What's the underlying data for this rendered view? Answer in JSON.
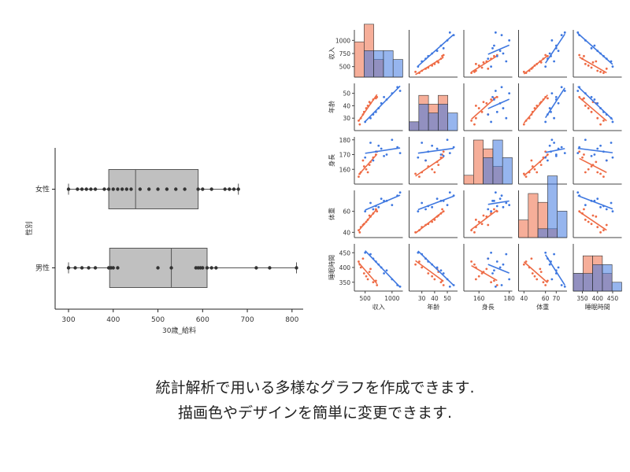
{
  "captions": {
    "line1": "統計解析で用いる多様なグラフを作成できます.",
    "line2": "描画色やデザインを簡単に変更できます."
  },
  "colors": {
    "female": "#ee6b45",
    "male": "#3f78e0",
    "box_fill": "#c0c0c0",
    "box_edge": "#555555",
    "point": "#333333"
  },
  "chart_data": [
    {
      "type": "box",
      "xlabel": "30歳_給料",
      "ylabel": "性別",
      "xlim": [
        270,
        825
      ],
      "xticks": [
        300,
        400,
        500,
        600,
        700,
        800
      ],
      "categories": [
        "女性",
        "男性"
      ],
      "boxes": [
        {
          "category": "女性",
          "min": 300,
          "q1": 390,
          "median": 450,
          "q3": 590,
          "max": 680,
          "points": [
            300,
            320,
            330,
            340,
            350,
            360,
            380,
            390,
            400,
            410,
            420,
            430,
            440,
            460,
            480,
            500,
            520,
            540,
            560,
            590,
            600,
            620,
            650,
            660,
            670,
            680
          ]
        },
        {
          "category": "男性",
          "min": 300,
          "q1": 392,
          "median": 530,
          "q3": 610,
          "max": 810,
          "points": [
            300,
            315,
            330,
            345,
            360,
            390,
            395,
            400,
            410,
            500,
            530,
            585,
            590,
            595,
            600,
            610,
            620,
            630,
            720,
            750,
            810
          ]
        }
      ],
      "grid": false
    },
    {
      "type": "scatter",
      "subtype": "pairplot",
      "variables": [
        "収入",
        "年齢",
        "身長",
        "体重",
        "睡眠時間"
      ],
      "ticks": {
        "収入": [
          500,
          1000
        ],
        "年齢": [
          30,
          40,
          50
        ],
        "身長": [
          160,
          180
        ],
        "体重": [
          40,
          60,
          70
        ],
        "睡眠時間": [
          350,
          400,
          450
        ]
      },
      "ylabel_ticks": {
        "収入": [
          500,
          750,
          1000
        ],
        "年齢": [
          30,
          40,
          50
        ],
        "身長": [
          160,
          170,
          180
        ],
        "体重": [
          40,
          60
        ],
        "睡眠時間": [
          350,
          400,
          450
        ]
      },
      "ranges": {
        "収入": [
          300,
          1200
        ],
        "年齢": [
          20,
          58
        ],
        "身長": [
          150,
          182
        ],
        "体重": [
          35,
          80
        ],
        "睡眠時間": [
          320,
          480
        ]
      },
      "series": [
        {
          "group": "female",
          "points": [
            [
              420,
              30,
              158,
              45,
              400
            ],
            [
              480,
              35,
              162,
              48,
              380
            ],
            [
              550,
              40,
              158,
              52,
              360
            ],
            [
              600,
              42,
              165,
              55,
              395
            ],
            [
              650,
              45,
              168,
              58,
              350
            ],
            [
              720,
              47,
              172,
              60,
              340
            ],
            [
              380,
              28,
              155,
              42,
              420
            ],
            [
              520,
              38,
              160,
              50,
              370
            ],
            [
              460,
              33,
              166,
              47,
              430
            ],
            [
              700,
              46,
              170,
              62,
              355
            ],
            [
              400,
              25,
              157,
              40,
              410
            ],
            [
              580,
              43,
              163,
              56,
              385
            ]
          ]
        },
        {
          "group": "male",
          "points": [
            [
              500,
              27,
              168,
              60,
              450
            ],
            [
              700,
              35,
              172,
              65,
              420
            ],
            [
              900,
              45,
              170,
              70,
              390
            ],
            [
              1100,
              55,
              175,
              75,
              340
            ],
            [
              600,
              30,
              178,
              68,
              445
            ],
            [
              800,
              42,
              174,
              72,
              400
            ],
            [
              1000,
              50,
              180,
              66,
              360
            ],
            [
              650,
              33,
              166,
              62,
              430
            ],
            [
              1150,
              52,
              171,
              78,
              335
            ],
            [
              750,
              38,
              176,
              64,
              410
            ],
            [
              850,
              47,
              169,
              70,
              380
            ]
          ]
        }
      ],
      "grid": false
    }
  ]
}
